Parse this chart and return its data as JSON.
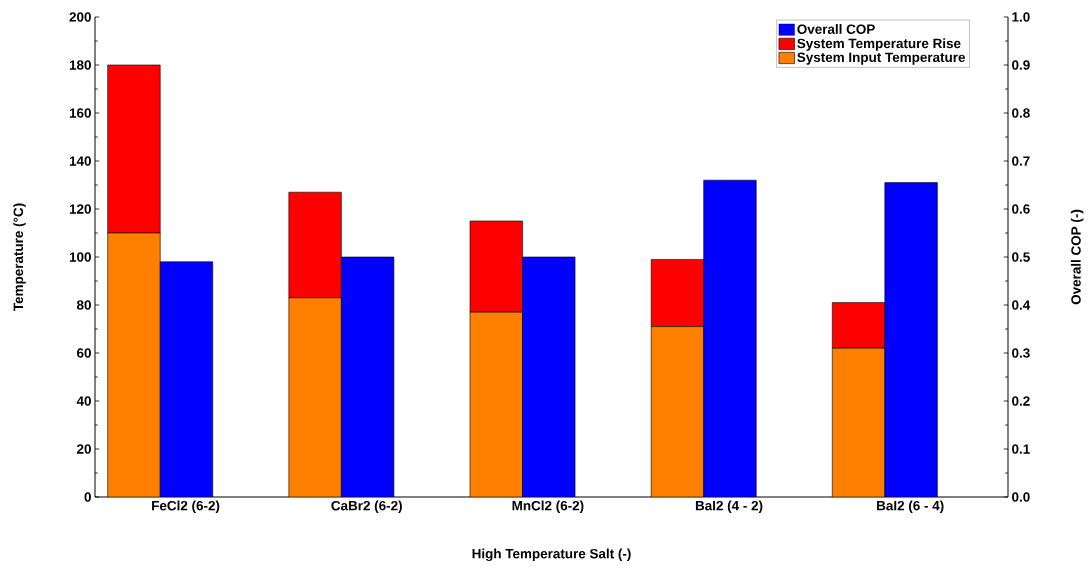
{
  "chart_data": {
    "type": "bar",
    "stacked": true,
    "legend": "top right",
    "xlabel": "High Temperature Salt (-)",
    "ylabel": "Temperature (°C)",
    "y2label": "Overall COP (-)",
    "categories": [
      "FeCl2 (6-2)",
      "CaBr2 (6-2)",
      "MnCl2 (6-2)",
      "BaI2 (4 - 2)",
      "BaI2 (6 - 4)"
    ],
    "series": [
      {
        "name": "System Input Temperature",
        "color": "#ff8000",
        "values": [
          110,
          83,
          77,
          71,
          62
        ]
      },
      {
        "name": "System Temperature Rise",
        "color": "#ff0000",
        "values": [
          70,
          44,
          38,
          28,
          19
        ]
      },
      {
        "name": "Overall COP",
        "color": "#0000ff",
        "axis": "y2",
        "values": [
          0.49,
          0.5,
          0.5,
          0.66,
          0.655
        ]
      }
    ],
    "ylim": [
      0,
      200
    ],
    "yticks": [
      0,
      20,
      40,
      60,
      80,
      100,
      120,
      140,
      160,
      180,
      200
    ],
    "y2lim": [
      0,
      1
    ],
    "y2ticks": [
      {
        "value": 0,
        "label": "0.0"
      },
      0.1,
      0.2,
      0.3,
      0.4,
      0.5,
      0.6,
      0.7,
      0.8,
      0.9,
      {
        "value": 1,
        "label": "1.0"
      }
    ]
  }
}
